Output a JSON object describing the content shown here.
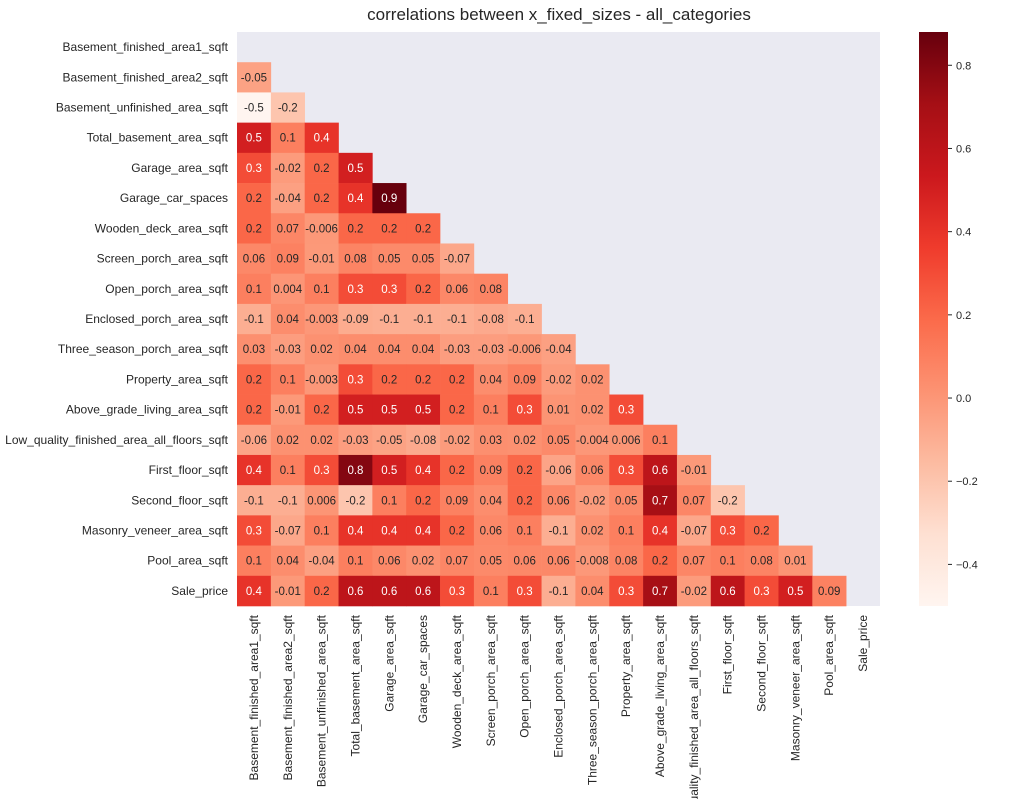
{
  "chart_data": {
    "type": "heatmap",
    "title": "correlations between x_fixed_sizes - all_categories",
    "xlabel": "",
    "ylabel": "",
    "grid": false,
    "mask": "upper-triangle",
    "row_labels": [
      "Basement_finished_area1_sqft",
      "Basement_finished_area2_sqft",
      "Basement_unfinished_area_sqft",
      "Total_basement_area_sqft",
      "Garage_area_sqft",
      "Garage_car_spaces",
      "Wooden_deck_area_sqft",
      "Screen_porch_area_sqft",
      "Open_porch_area_sqft",
      "Enclosed_porch_area_sqft",
      "Three_season_porch_area_sqft",
      "Property_area_sqft",
      "Above_grade_living_area_sqft",
      "Low_quality_finished_area_all_floors_sqft",
      "First_floor_sqft",
      "Second_floor_sqft",
      "Masonry_veneer_area_sqft",
      "Pool_area_sqft",
      "Sale_price"
    ],
    "col_labels": [
      "Basement_finished_area1_sqft",
      "Basement_finished_area2_sqft",
      "Basement_unfinished_area_sqft",
      "Total_basement_area_sqft",
      "Garage_area_sqft",
      "Garage_car_spaces",
      "Wooden_deck_area_sqft",
      "Screen_porch_area_sqft",
      "Open_porch_area_sqft",
      "Enclosed_porch_area_sqft",
      "Three_season_porch_area_sqft",
      "Property_area_sqft",
      "Above_grade_living_area_sqft",
      "uality_finished_area_all_floors_sqft",
      "First_floor_sqft",
      "Second_floor_sqft",
      "Masonry_veneer_area_sqft",
      "Pool_area_sqft",
      "Sale_price"
    ],
    "values": [
      [],
      [
        -0.05
      ],
      [
        -0.5,
        -0.2
      ],
      [
        0.5,
        0.1,
        0.4
      ],
      [
        0.3,
        -0.02,
        0.2,
        0.5
      ],
      [
        0.2,
        -0.04,
        0.2,
        0.4,
        0.9
      ],
      [
        0.2,
        0.07,
        -0.006,
        0.2,
        0.2,
        0.2
      ],
      [
        0.06,
        0.09,
        -0.01,
        0.08,
        0.05,
        0.05,
        -0.07
      ],
      [
        0.1,
        0.004,
        0.1,
        0.3,
        0.3,
        0.2,
        0.06,
        0.08
      ],
      [
        -0.1,
        0.04,
        -0.003,
        -0.09,
        -0.1,
        -0.1,
        -0.1,
        -0.08,
        -0.1
      ],
      [
        0.03,
        -0.03,
        0.02,
        0.04,
        0.04,
        0.04,
        -0.03,
        -0.03,
        -0.006,
        -0.04
      ],
      [
        0.2,
        0.1,
        -0.003,
        0.3,
        0.2,
        0.2,
        0.2,
        0.04,
        0.09,
        -0.02,
        0.02
      ],
      [
        0.2,
        -0.01,
        0.2,
        0.5,
        0.5,
        0.5,
        0.2,
        0.1,
        0.3,
        0.01,
        0.02,
        0.3
      ],
      [
        -0.06,
        0.02,
        0.02,
        -0.03,
        -0.05,
        -0.08,
        -0.02,
        0.03,
        0.02,
        0.05,
        -0.004,
        0.006,
        0.1
      ],
      [
        0.4,
        0.1,
        0.3,
        0.8,
        0.5,
        0.4,
        0.2,
        0.09,
        0.2,
        -0.06,
        0.06,
        0.3,
        0.6,
        -0.01
      ],
      [
        -0.1,
        -0.1,
        0.006,
        -0.2,
        0.1,
        0.2,
        0.09,
        0.04,
        0.2,
        0.06,
        -0.02,
        0.05,
        0.7,
        0.07,
        -0.2
      ],
      [
        0.3,
        -0.07,
        0.1,
        0.4,
        0.4,
        0.4,
        0.2,
        0.06,
        0.1,
        -0.1,
        0.02,
        0.1,
        0.4,
        -0.07,
        0.3,
        0.2
      ],
      [
        0.1,
        0.04,
        -0.04,
        0.1,
        0.06,
        0.02,
        0.07,
        0.05,
        0.06,
        0.06,
        -0.008,
        0.08,
        0.2,
        0.07,
        0.1,
        0.08,
        0.01
      ],
      [
        0.4,
        -0.01,
        0.2,
        0.6,
        0.6,
        0.6,
        0.3,
        0.1,
        0.3,
        -0.1,
        0.04,
        0.3,
        0.7,
        -0.02,
        0.6,
        0.3,
        0.5,
        0.09
      ]
    ],
    "colorbar": {
      "colormap": "Reds",
      "vmin": -0.5,
      "vmax": 0.88,
      "ticks": [
        0.8,
        0.6,
        0.4,
        0.2,
        0.0,
        -0.2,
        -0.4
      ],
      "tick_labels": [
        "0.8",
        "0.6",
        "0.4",
        "0.2",
        "0.0",
        "−0.2",
        "−0.4"
      ]
    },
    "colors": {
      "masked_background": "#eaeaf2",
      "text_dark": "#262626",
      "text_light": "#ffffff"
    }
  }
}
